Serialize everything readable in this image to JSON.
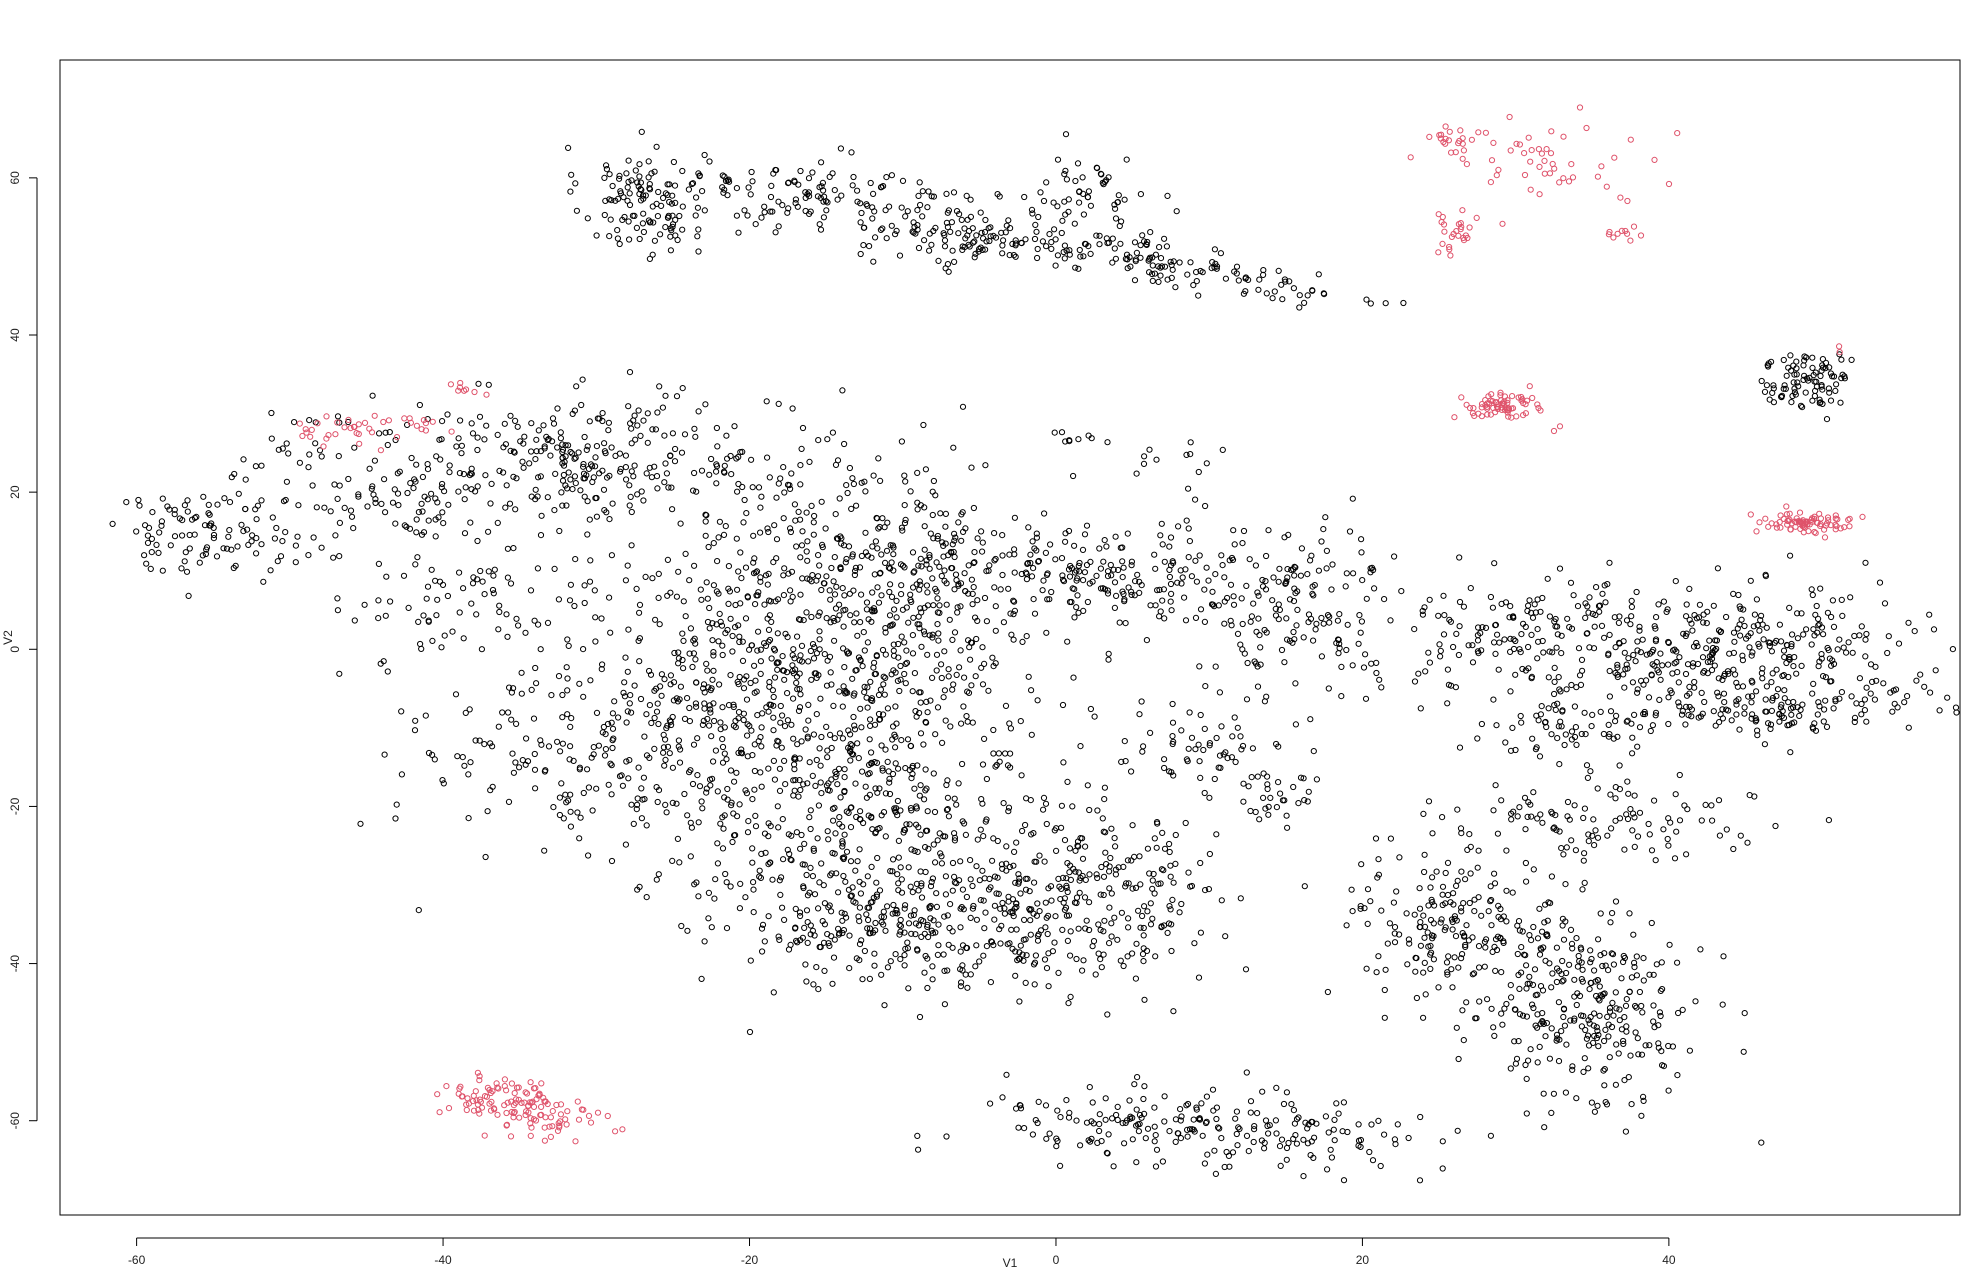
{
  "chart_data": {
    "type": "scatter",
    "title": "",
    "xlabel": "V1",
    "ylabel": "V2",
    "xlim": [
      -65,
      59
    ],
    "ylim": [
      -72,
      75
    ],
    "xticks": [
      "-60",
      "-40",
      "-20",
      "0",
      "20",
      "40"
    ],
    "yticks": [
      "-60",
      "-40",
      "-20",
      "0",
      "20",
      "40",
      "60"
    ],
    "grid": false,
    "legend": "none",
    "marker": "open-circle",
    "colors": {
      "black_group": "#000000",
      "red_group": "#DF536B"
    },
    "series": [
      {
        "color": "black_group",
        "clusters": [
          {
            "center": [
              -27,
              57
            ],
            "spread": [
              2.0,
              3.5
            ],
            "n": 110
          },
          {
            "center": [
              -15,
              57
            ],
            "spread": [
              6.0,
              2.5
            ],
            "n": 140,
            "angle": -15
          },
          {
            "center": [
              -5,
              52
            ],
            "spread": [
              3.0,
              2.0
            ],
            "n": 60
          },
          {
            "center": [
              5,
              50
            ],
            "spread": [
              10.0,
              1.5
            ],
            "n": 180,
            "angle": -20
          },
          {
            "center": [
              2,
              58
            ],
            "spread": [
              2.0,
              2.5
            ],
            "n": 50
          },
          {
            "center": [
              -56,
              15
            ],
            "spread": [
              3.0,
              2.5
            ],
            "n": 90
          },
          {
            "center": [
              -44,
              21
            ],
            "spread": [
              5.0,
              5.0
            ],
            "n": 140
          },
          {
            "center": [
              -30,
              24
            ],
            "spread": [
              6.0,
              4.0
            ],
            "n": 260
          },
          {
            "center": [
              -38,
              6
            ],
            "spread": [
              4.0,
              4.0
            ],
            "n": 80
          },
          {
            "center": [
              -33,
              -12
            ],
            "spread": [
              5.0,
              6.0
            ],
            "n": 130
          },
          {
            "center": [
              -22,
              -8
            ],
            "spread": [
              5.0,
              9.0
            ],
            "n": 300
          },
          {
            "center": [
              -13,
              5
            ],
            "spread": [
              7.0,
              10.0
            ],
            "n": 650
          },
          {
            "center": [
              -12,
              -20
            ],
            "spread": [
              6.0,
              8.0
            ],
            "n": 400
          },
          {
            "center": [
              -10,
              -34
            ],
            "spread": [
              6.0,
              5.0
            ],
            "n": 300
          },
          {
            "center": [
              2,
              -32
            ],
            "spread": [
              4.0,
              6.0
            ],
            "n": 250
          },
          {
            "center": [
              -2,
              11
            ],
            "spread": [
              4.0,
              2.5
            ],
            "n": 90
          },
          {
            "center": [
              6,
              9
            ],
            "spread": [
              3.0,
              3.0
            ],
            "n": 70
          },
          {
            "center": [
              15,
              6
            ],
            "spread": [
              4.0,
              5.0
            ],
            "n": 180
          },
          {
            "center": [
              10,
              -12
            ],
            "spread": [
              3.0,
              2.5
            ],
            "n": 60
          },
          {
            "center": [
              14,
              -18
            ],
            "spread": [
              1.5,
              2.0
            ],
            "n": 30
          },
          {
            "center": [
              30,
              2
            ],
            "spread": [
              5.0,
              3.5
            ],
            "n": 150
          },
          {
            "center": [
              45,
              0
            ],
            "spread": [
              7.0,
              4.0
            ],
            "n": 350
          },
          {
            "center": [
              46,
              -8
            ],
            "spread": [
              5.0,
              1.5
            ],
            "n": 110
          },
          {
            "center": [
              33,
              -10
            ],
            "spread": [
              3.0,
              2.0
            ],
            "n": 60
          },
          {
            "center": [
              35,
              -22
            ],
            "spread": [
              5.0,
              2.5
            ],
            "n": 110
          },
          {
            "center": [
              27,
              -35
            ],
            "spread": [
              4.0,
              5.0
            ],
            "n": 220
          },
          {
            "center": [
              35,
              -47
            ],
            "spread": [
              3.5,
              6.0
            ],
            "n": 260
          },
          {
            "center": [
              10,
              -61
            ],
            "spread": [
              7.0,
              2.5
            ],
            "n": 220,
            "angle": -10
          },
          {
            "center": [
              49,
              34
            ],
            "spread": [
              1.5,
              2.0
            ],
            "n": 90
          },
          {
            "center": [
              1,
              27
            ],
            "spread": [
              1.0,
              0.6
            ],
            "n": 8
          },
          {
            "center": [
              6,
              24
            ],
            "spread": [
              2.5,
              2.0
            ],
            "n": 14
          }
        ]
      },
      {
        "color": "red_group",
        "clusters": [
          {
            "center": [
              -35,
              -58
            ],
            "spread": [
              2.5,
              1.5
            ],
            "n": 130,
            "angle": -20
          },
          {
            "center": [
              29,
              31
            ],
            "spread": [
              1.5,
              0.8
            ],
            "n": 70
          },
          {
            "center": [
              49,
              16
            ],
            "spread": [
              1.5,
              0.8
            ],
            "n": 80
          },
          {
            "center": [
              26,
              65
            ],
            "spread": [
              0.8,
              0.8
            ],
            "n": 20
          },
          {
            "center": [
              32,
              62
            ],
            "spread": [
              3.5,
              3.0
            ],
            "n": 50
          },
          {
            "center": [
              26,
              53
            ],
            "spread": [
              0.8,
              1.5
            ],
            "n": 25
          },
          {
            "center": [
              37,
              53
            ],
            "spread": [
              0.6,
              0.6
            ],
            "n": 10
          },
          {
            "center": [
              -46,
              28
            ],
            "spread": [
              3.0,
              1.0
            ],
            "n": 40
          },
          {
            "center": [
              -39,
              33
            ],
            "spread": [
              0.8,
              0.6
            ],
            "n": 8
          },
          {
            "center": [
              51,
              38
            ],
            "spread": [
              0.4,
              0.4
            ],
            "n": 2
          },
          {
            "center": [
              33,
              28
            ],
            "spread": [
              0.4,
              0.4
            ],
            "n": 2
          }
        ]
      }
    ]
  }
}
